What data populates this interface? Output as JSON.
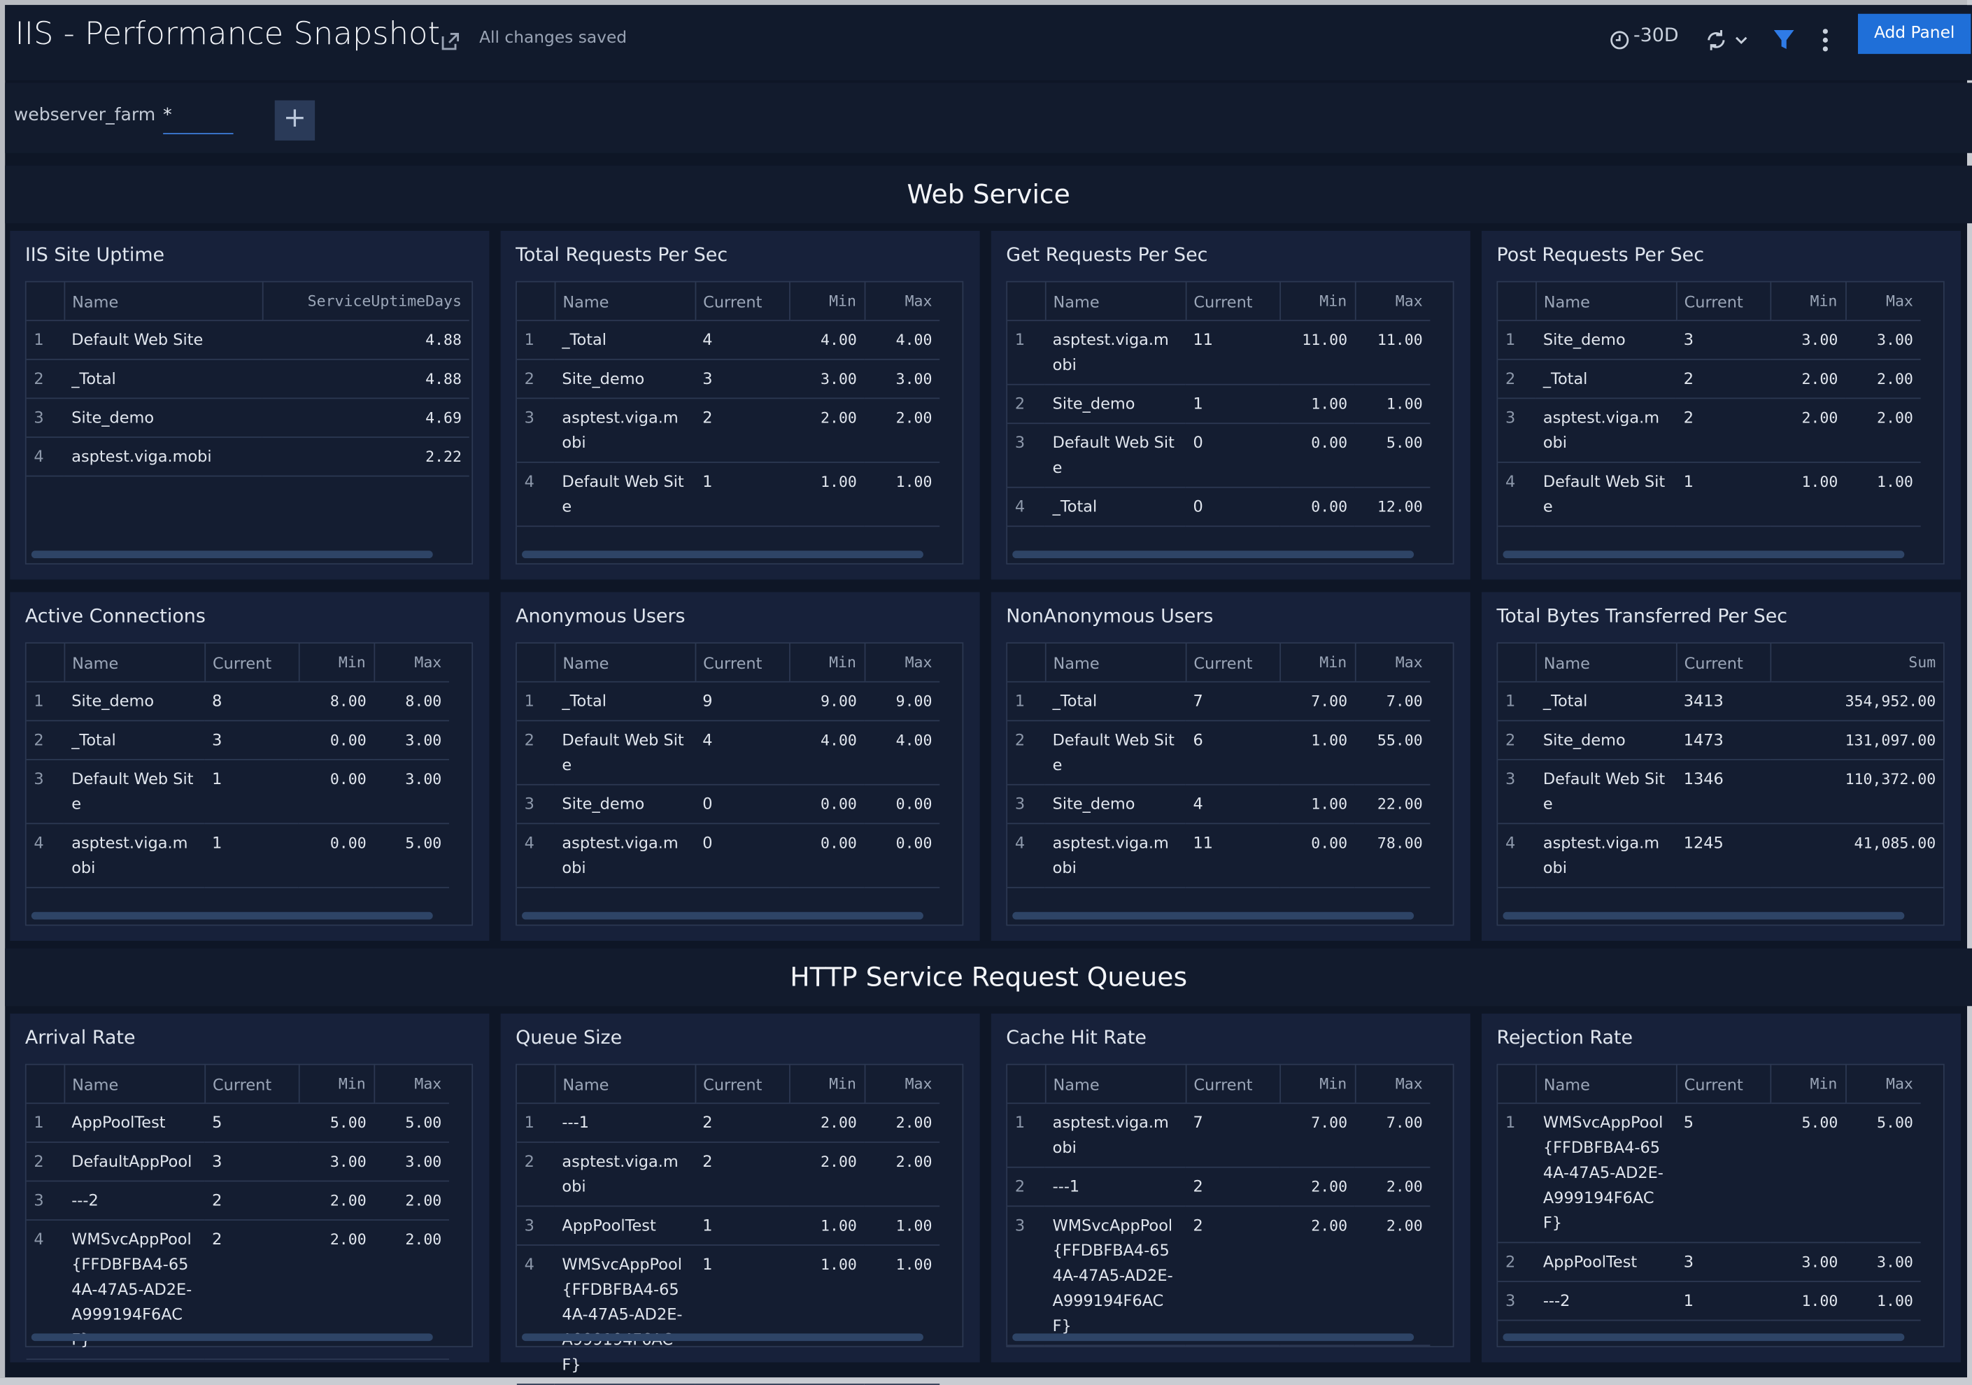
{
  "header": {
    "title": "IIS - Performance Snapshot",
    "status": "All changes saved",
    "time_range": "-30D",
    "add_button": "Add Panel"
  },
  "filter": {
    "label": "webserver_farm",
    "value": "*"
  },
  "sections": [
    {
      "title": "Web Service",
      "panels": [
        {
          "title": "IIS Site Uptime",
          "columns": [
            "Name",
            "ServiceUptimeDays"
          ],
          "rows": [
            [
              "1",
              "Default Web Site",
              "4.88"
            ],
            [
              "2",
              "_Total",
              "4.88"
            ],
            [
              "3",
              "Site_demo",
              "4.69"
            ],
            [
              "4",
              "asptest.viga.mobi",
              "2.22"
            ]
          ]
        },
        {
          "title": "Total Requests Per Sec",
          "columns": [
            "Name",
            "Current",
            "Min",
            "Max"
          ],
          "rows": [
            [
              "1",
              "_Total",
              "4",
              "4.00",
              "4.00"
            ],
            [
              "2",
              "Site_demo",
              "3",
              "3.00",
              "3.00"
            ],
            [
              "3",
              "asptest.viga.mobi",
              "2",
              "2.00",
              "2.00"
            ],
            [
              "4",
              "Default Web Site",
              "1",
              "1.00",
              "1.00"
            ]
          ]
        },
        {
          "title": "Get Requests Per Sec",
          "columns": [
            "Name",
            "Current",
            "Min",
            "Max"
          ],
          "rows": [
            [
              "1",
              "asptest.viga.mobi",
              "11",
              "11.00",
              "11.00"
            ],
            [
              "2",
              "Site_demo",
              "1",
              "1.00",
              "1.00"
            ],
            [
              "3",
              "Default Web Site",
              "0",
              "0.00",
              "5.00"
            ],
            [
              "4",
              "_Total",
              "0",
              "0.00",
              "12.00"
            ]
          ]
        },
        {
          "title": "Post Requests Per Sec",
          "columns": [
            "Name",
            "Current",
            "Min",
            "Max"
          ],
          "rows": [
            [
              "1",
              "Site_demo",
              "3",
              "3.00",
              "3.00"
            ],
            [
              "2",
              "_Total",
              "2",
              "2.00",
              "2.00"
            ],
            [
              "3",
              "asptest.viga.mobi",
              "2",
              "2.00",
              "2.00"
            ],
            [
              "4",
              "Default Web Site",
              "1",
              "1.00",
              "1.00"
            ]
          ]
        },
        {
          "title": "Active Connections",
          "columns": [
            "Name",
            "Current",
            "Min",
            "Max"
          ],
          "rows": [
            [
              "1",
              "Site_demo",
              "8",
              "8.00",
              "8.00"
            ],
            [
              "2",
              "_Total",
              "3",
              "0.00",
              "3.00"
            ],
            [
              "3",
              "Default Web Site",
              "1",
              "0.00",
              "3.00"
            ],
            [
              "4",
              "asptest.viga.mobi",
              "1",
              "0.00",
              "5.00"
            ]
          ]
        },
        {
          "title": "Anonymous Users",
          "columns": [
            "Name",
            "Current",
            "Min",
            "Max"
          ],
          "rows": [
            [
              "1",
              "_Total",
              "9",
              "9.00",
              "9.00"
            ],
            [
              "2",
              "Default Web Site",
              "4",
              "4.00",
              "4.00"
            ],
            [
              "3",
              "Site_demo",
              "0",
              "0.00",
              "0.00"
            ],
            [
              "4",
              "asptest.viga.mobi",
              "0",
              "0.00",
              "0.00"
            ]
          ]
        },
        {
          "title": "NonAnonymous Users",
          "columns": [
            "Name",
            "Current",
            "Min",
            "Max"
          ],
          "rows": [
            [
              "1",
              "_Total",
              "7",
              "7.00",
              "7.00"
            ],
            [
              "2",
              "Default Web Site",
              "6",
              "1.00",
              "55.00"
            ],
            [
              "3",
              "Site_demo",
              "4",
              "1.00",
              "22.00"
            ],
            [
              "4",
              "asptest.viga.mobi",
              "11",
              "0.00",
              "78.00"
            ]
          ]
        },
        {
          "title": "Total Bytes Transferred Per Sec",
          "columns": [
            "Name",
            "Current",
            "Sum"
          ],
          "rows": [
            [
              "1",
              "_Total",
              "3413",
              "354,952.00"
            ],
            [
              "2",
              "Site_demo",
              "1473",
              "131,097.00"
            ],
            [
              "3",
              "Default Web Site",
              "1346",
              "110,372.00"
            ],
            [
              "4",
              "asptest.viga.mobi",
              "1245",
              "41,085.00"
            ]
          ]
        }
      ]
    },
    {
      "title": "HTTP Service Request Queues",
      "panels": [
        {
          "title": "Arrival Rate",
          "columns": [
            "Name",
            "Current",
            "Min",
            "Max"
          ],
          "rows": [
            [
              "1",
              "AppPoolTest",
              "5",
              "5.00",
              "5.00"
            ],
            [
              "2",
              "DefaultAppPool",
              "3",
              "3.00",
              "3.00"
            ],
            [
              "3",
              "---2",
              "2",
              "2.00",
              "2.00"
            ],
            [
              "4",
              "WMSvcAppPool{FFDBFBA4-654A-47A5-AD2E-A999194F6ACF}",
              "2",
              "2.00",
              "2.00"
            ]
          ]
        },
        {
          "title": "Queue Size",
          "columns": [
            "Name",
            "Current",
            "Min",
            "Max"
          ],
          "rows": [
            [
              "1",
              "---1",
              "2",
              "2.00",
              "2.00"
            ],
            [
              "2",
              "asptest.viga.mobi",
              "2",
              "2.00",
              "2.00"
            ],
            [
              "3",
              "AppPoolTest",
              "1",
              "1.00",
              "1.00"
            ],
            [
              "4",
              "WMSvcAppPool{FFDBFBA4-654A-47A5-AD2E-A999194F6ACF}",
              "1",
              "1.00",
              "1.00"
            ]
          ]
        },
        {
          "title": "Cache Hit Rate",
          "columns": [
            "Name",
            "Current",
            "Min",
            "Max"
          ],
          "rows": [
            [
              "1",
              "asptest.viga.mobi",
              "7",
              "7.00",
              "7.00"
            ],
            [
              "2",
              "---1",
              "2",
              "2.00",
              "2.00"
            ],
            [
              "3",
              "WMSvcAppPool{FFDBFBA4-654A-47A5-AD2E-A999194F6ACF}",
              "2",
              "2.00",
              "2.00"
            ]
          ]
        },
        {
          "title": "Rejection Rate",
          "columns": [
            "Name",
            "Current",
            "Min",
            "Max"
          ],
          "rows": [
            [
              "1",
              "WMSvcAppPool{FFDBFBA4-654A-47A5-AD2E-A999194F6ACF}",
              "5",
              "5.00",
              "5.00"
            ],
            [
              "2",
              "AppPoolTest",
              "3",
              "3.00",
              "3.00"
            ],
            [
              "3",
              "---2",
              "1",
              "1.00",
              "1.00"
            ]
          ]
        }
      ]
    }
  ]
}
